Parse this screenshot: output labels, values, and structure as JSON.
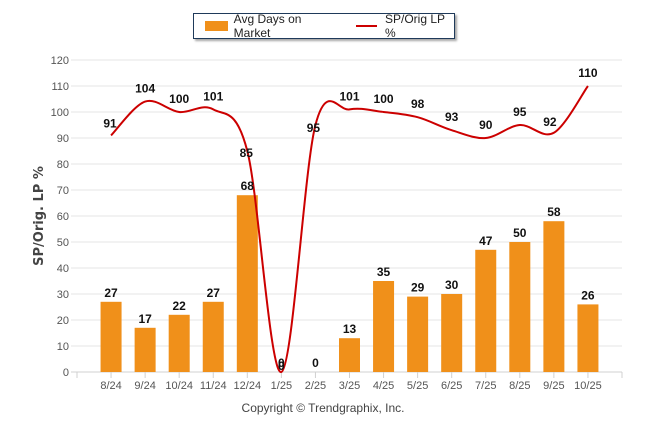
{
  "chart_data": {
    "type": "bar+line",
    "title": "",
    "xlabel": "",
    "ylabel": "SP/Orig. LP %",
    "ylim": [
      0,
      120
    ],
    "yticks": [
      0,
      10,
      20,
      30,
      40,
      50,
      60,
      70,
      80,
      90,
      100,
      110,
      120
    ],
    "grid": true,
    "legend_position": "top-center",
    "categories": [
      "8/24",
      "9/24",
      "10/24",
      "11/24",
      "12/24",
      "1/25",
      "2/25",
      "3/25",
      "4/25",
      "5/25",
      "6/25",
      "7/25",
      "8/25",
      "9/25",
      "10/25"
    ],
    "series": [
      {
        "name": "Avg Days on Market",
        "type": "bar",
        "color": "#f0901a",
        "values": [
          27,
          17,
          22,
          27,
          68,
          0,
          0,
          13,
          35,
          29,
          30,
          47,
          50,
          58,
          26
        ]
      },
      {
        "name": "SP/Orig LP %",
        "type": "line",
        "color": "#cc0000",
        "values": [
          91,
          104,
          100,
          101,
          85,
          0,
          95,
          101,
          100,
          98,
          93,
          90,
          95,
          92,
          110
        ]
      }
    ]
  },
  "legend": {
    "bar_label": "Avg Days on Market",
    "line_label": "SP/Orig LP %"
  },
  "footer": {
    "copyright": "Copyright © Trendgraphix, Inc."
  }
}
